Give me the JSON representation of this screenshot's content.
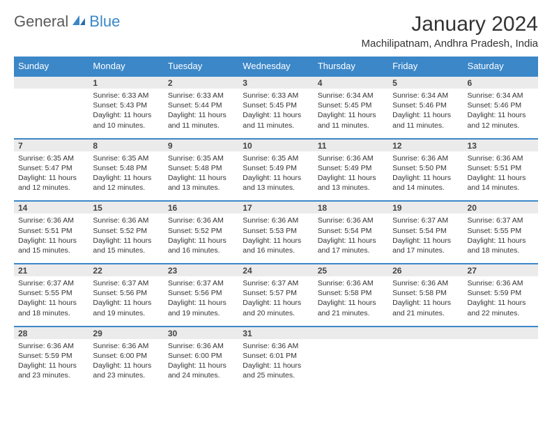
{
  "logo": {
    "text1": "General",
    "text2": "Blue",
    "color_general": "#5a5a5a",
    "color_blue": "#3b87c8",
    "sail_color": "#3b87c8"
  },
  "header": {
    "title": "January 2024",
    "location": "Machilipatnam, Andhra Pradesh, India"
  },
  "styling": {
    "header_bg": "#3b87c8",
    "header_text": "#ffffff",
    "daynum_bg": "#ebebeb",
    "cell_bg": "#ffffff",
    "row_border": "#3b87c8",
    "font_family": "Arial",
    "title_fontsize": 30,
    "subtitle_fontsize": 15,
    "dayhead_fontsize": 13,
    "cell_fontsize": 10.5
  },
  "days": [
    "Sunday",
    "Monday",
    "Tuesday",
    "Wednesday",
    "Thursday",
    "Friday",
    "Saturday"
  ],
  "weeks": [
    [
      {
        "n": "",
        "sr": "",
        "ss": "",
        "dl": ""
      },
      {
        "n": "1",
        "sr": "Sunrise: 6:33 AM",
        "ss": "Sunset: 5:43 PM",
        "dl": "Daylight: 11 hours and 10 minutes."
      },
      {
        "n": "2",
        "sr": "Sunrise: 6:33 AM",
        "ss": "Sunset: 5:44 PM",
        "dl": "Daylight: 11 hours and 11 minutes."
      },
      {
        "n": "3",
        "sr": "Sunrise: 6:33 AM",
        "ss": "Sunset: 5:45 PM",
        "dl": "Daylight: 11 hours and 11 minutes."
      },
      {
        "n": "4",
        "sr": "Sunrise: 6:34 AM",
        "ss": "Sunset: 5:45 PM",
        "dl": "Daylight: 11 hours and 11 minutes."
      },
      {
        "n": "5",
        "sr": "Sunrise: 6:34 AM",
        "ss": "Sunset: 5:46 PM",
        "dl": "Daylight: 11 hours and 11 minutes."
      },
      {
        "n": "6",
        "sr": "Sunrise: 6:34 AM",
        "ss": "Sunset: 5:46 PM",
        "dl": "Daylight: 11 hours and 12 minutes."
      }
    ],
    [
      {
        "n": "7",
        "sr": "Sunrise: 6:35 AM",
        "ss": "Sunset: 5:47 PM",
        "dl": "Daylight: 11 hours and 12 minutes."
      },
      {
        "n": "8",
        "sr": "Sunrise: 6:35 AM",
        "ss": "Sunset: 5:48 PM",
        "dl": "Daylight: 11 hours and 12 minutes."
      },
      {
        "n": "9",
        "sr": "Sunrise: 6:35 AM",
        "ss": "Sunset: 5:48 PM",
        "dl": "Daylight: 11 hours and 13 minutes."
      },
      {
        "n": "10",
        "sr": "Sunrise: 6:35 AM",
        "ss": "Sunset: 5:49 PM",
        "dl": "Daylight: 11 hours and 13 minutes."
      },
      {
        "n": "11",
        "sr": "Sunrise: 6:36 AM",
        "ss": "Sunset: 5:49 PM",
        "dl": "Daylight: 11 hours and 13 minutes."
      },
      {
        "n": "12",
        "sr": "Sunrise: 6:36 AM",
        "ss": "Sunset: 5:50 PM",
        "dl": "Daylight: 11 hours and 14 minutes."
      },
      {
        "n": "13",
        "sr": "Sunrise: 6:36 AM",
        "ss": "Sunset: 5:51 PM",
        "dl": "Daylight: 11 hours and 14 minutes."
      }
    ],
    [
      {
        "n": "14",
        "sr": "Sunrise: 6:36 AM",
        "ss": "Sunset: 5:51 PM",
        "dl": "Daylight: 11 hours and 15 minutes."
      },
      {
        "n": "15",
        "sr": "Sunrise: 6:36 AM",
        "ss": "Sunset: 5:52 PM",
        "dl": "Daylight: 11 hours and 15 minutes."
      },
      {
        "n": "16",
        "sr": "Sunrise: 6:36 AM",
        "ss": "Sunset: 5:52 PM",
        "dl": "Daylight: 11 hours and 16 minutes."
      },
      {
        "n": "17",
        "sr": "Sunrise: 6:36 AM",
        "ss": "Sunset: 5:53 PM",
        "dl": "Daylight: 11 hours and 16 minutes."
      },
      {
        "n": "18",
        "sr": "Sunrise: 6:36 AM",
        "ss": "Sunset: 5:54 PM",
        "dl": "Daylight: 11 hours and 17 minutes."
      },
      {
        "n": "19",
        "sr": "Sunrise: 6:37 AM",
        "ss": "Sunset: 5:54 PM",
        "dl": "Daylight: 11 hours and 17 minutes."
      },
      {
        "n": "20",
        "sr": "Sunrise: 6:37 AM",
        "ss": "Sunset: 5:55 PM",
        "dl": "Daylight: 11 hours and 18 minutes."
      }
    ],
    [
      {
        "n": "21",
        "sr": "Sunrise: 6:37 AM",
        "ss": "Sunset: 5:55 PM",
        "dl": "Daylight: 11 hours and 18 minutes."
      },
      {
        "n": "22",
        "sr": "Sunrise: 6:37 AM",
        "ss": "Sunset: 5:56 PM",
        "dl": "Daylight: 11 hours and 19 minutes."
      },
      {
        "n": "23",
        "sr": "Sunrise: 6:37 AM",
        "ss": "Sunset: 5:56 PM",
        "dl": "Daylight: 11 hours and 19 minutes."
      },
      {
        "n": "24",
        "sr": "Sunrise: 6:37 AM",
        "ss": "Sunset: 5:57 PM",
        "dl": "Daylight: 11 hours and 20 minutes."
      },
      {
        "n": "25",
        "sr": "Sunrise: 6:36 AM",
        "ss": "Sunset: 5:58 PM",
        "dl": "Daylight: 11 hours and 21 minutes."
      },
      {
        "n": "26",
        "sr": "Sunrise: 6:36 AM",
        "ss": "Sunset: 5:58 PM",
        "dl": "Daylight: 11 hours and 21 minutes."
      },
      {
        "n": "27",
        "sr": "Sunrise: 6:36 AM",
        "ss": "Sunset: 5:59 PM",
        "dl": "Daylight: 11 hours and 22 minutes."
      }
    ],
    [
      {
        "n": "28",
        "sr": "Sunrise: 6:36 AM",
        "ss": "Sunset: 5:59 PM",
        "dl": "Daylight: 11 hours and 23 minutes."
      },
      {
        "n": "29",
        "sr": "Sunrise: 6:36 AM",
        "ss": "Sunset: 6:00 PM",
        "dl": "Daylight: 11 hours and 23 minutes."
      },
      {
        "n": "30",
        "sr": "Sunrise: 6:36 AM",
        "ss": "Sunset: 6:00 PM",
        "dl": "Daylight: 11 hours and 24 minutes."
      },
      {
        "n": "31",
        "sr": "Sunrise: 6:36 AM",
        "ss": "Sunset: 6:01 PM",
        "dl": "Daylight: 11 hours and 25 minutes."
      },
      {
        "n": "",
        "sr": "",
        "ss": "",
        "dl": ""
      },
      {
        "n": "",
        "sr": "",
        "ss": "",
        "dl": ""
      },
      {
        "n": "",
        "sr": "",
        "ss": "",
        "dl": ""
      }
    ]
  ]
}
